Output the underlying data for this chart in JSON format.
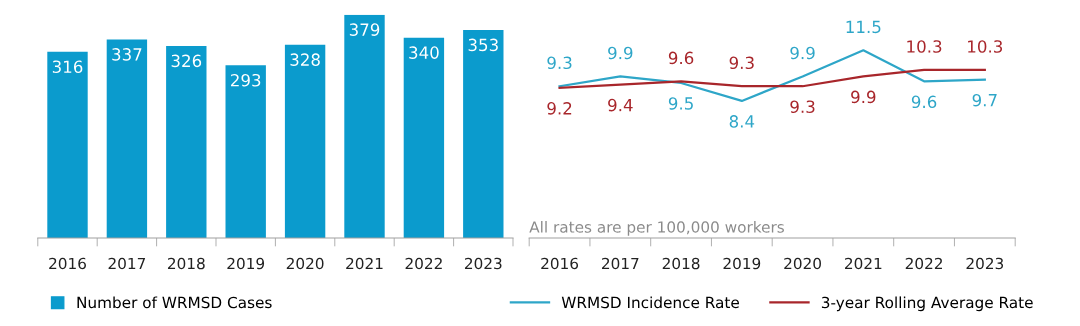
{
  "chart_data": [
    {
      "type": "bar",
      "categories": [
        "2016",
        "2017",
        "2018",
        "2019",
        "2020",
        "2021",
        "2022",
        "2023"
      ],
      "series": [
        {
          "name": "Number of WRMSD Cases",
          "color": "#0b9bcd",
          "values": [
            316,
            337,
            326,
            293,
            328,
            379,
            340,
            353
          ]
        }
      ],
      "data_labels": true,
      "legend": "bottom left",
      "grid": false,
      "tick_labels": "x"
    },
    {
      "type": "line",
      "categories": [
        "2016",
        "2017",
        "2018",
        "2019",
        "2020",
        "2021",
        "2022",
        "2023"
      ],
      "series": [
        {
          "name": "WRMSD Incidence Rate",
          "color": "#2ea6c8",
          "values": [
            9.3,
            9.9,
            9.5,
            8.4,
            9.9,
            11.5,
            9.6,
            9.7
          ]
        },
        {
          "name": "3-year Rolling Average Rate",
          "color": "#a8262b",
          "values": [
            9.2,
            9.4,
            9.6,
            9.3,
            9.3,
            9.9,
            10.3,
            10.3
          ]
        }
      ],
      "data_labels": true,
      "legend": "bottom",
      "grid": false,
      "marker": "none",
      "line_style": "solid",
      "tick_labels": "x",
      "annotations": [
        "All rates are per 100,000 workers"
      ]
    }
  ]
}
